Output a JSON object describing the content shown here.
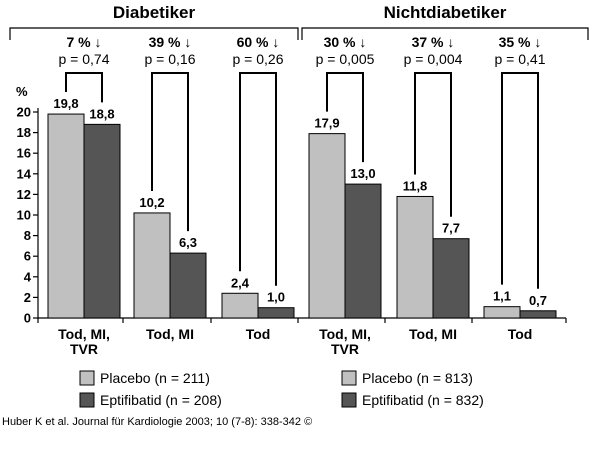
{
  "chart_data": {
    "type": "bar",
    "ylabel": "%",
    "ylim": [
      0,
      20
    ],
    "yticks": [
      0,
      2,
      4,
      6,
      8,
      10,
      12,
      14,
      16,
      18,
      20
    ],
    "grid": false,
    "colors": {
      "placebo": "#c0c0c0",
      "eptifibatid": "#555555"
    },
    "groups": [
      {
        "title": "Diabetiker",
        "categories": [
          "Tod, MI, TVR",
          "Tod, MI",
          "Tod"
        ],
        "tick_labels": [
          [
            "Tod, MI,",
            "TVR"
          ],
          [
            "Tod, MI"
          ],
          [
            "Tod"
          ]
        ],
        "series": [
          {
            "name": "Placebo (n = 211)",
            "values": [
              19.8,
              10.2,
              2.4
            ],
            "labels": [
              "19,8",
              "10,2",
              "2,4"
            ]
          },
          {
            "name": "Eptifibatid (n = 208)",
            "values": [
              18.8,
              6.3,
              1.0
            ],
            "labels": [
              "18,8",
              "6,3",
              "1,0"
            ]
          }
        ],
        "annotations": [
          {
            "reduction": "7 % ↓",
            "p": "p = 0,74"
          },
          {
            "reduction": "39 % ↓",
            "p": "p = 0,16"
          },
          {
            "reduction": "60 % ↓",
            "p": "p = 0,26"
          }
        ]
      },
      {
        "title": "Nichtdiabetiker",
        "categories": [
          "Tod, MI, TVR",
          "Tod, MI",
          "Tod"
        ],
        "tick_labels": [
          [
            "Tod, MI,",
            "TVR"
          ],
          [
            "Tod, MI"
          ],
          [
            "Tod"
          ]
        ],
        "series": [
          {
            "name": "Placebo (n = 813)",
            "values": [
              17.9,
              11.8,
              1.1
            ],
            "labels": [
              "17,9",
              "11,8",
              "1,1"
            ]
          },
          {
            "name": "Eptifibatid (n = 832)",
            "values": [
              13.0,
              7.7,
              0.7
            ],
            "labels": [
              "13,0",
              "7,7",
              "0,7"
            ]
          }
        ],
        "annotations": [
          {
            "reduction": "30 % ↓",
            "p": "p = 0,005"
          },
          {
            "reduction": "37 % ↓",
            "p": "p = 0,004"
          },
          {
            "reduction": "35 % ↓",
            "p": "p = 0,41"
          }
        ]
      }
    ]
  },
  "citation": "Huber K et al. Journal für Kardiologie 2003; 10 (7-8): 338-342 ©"
}
